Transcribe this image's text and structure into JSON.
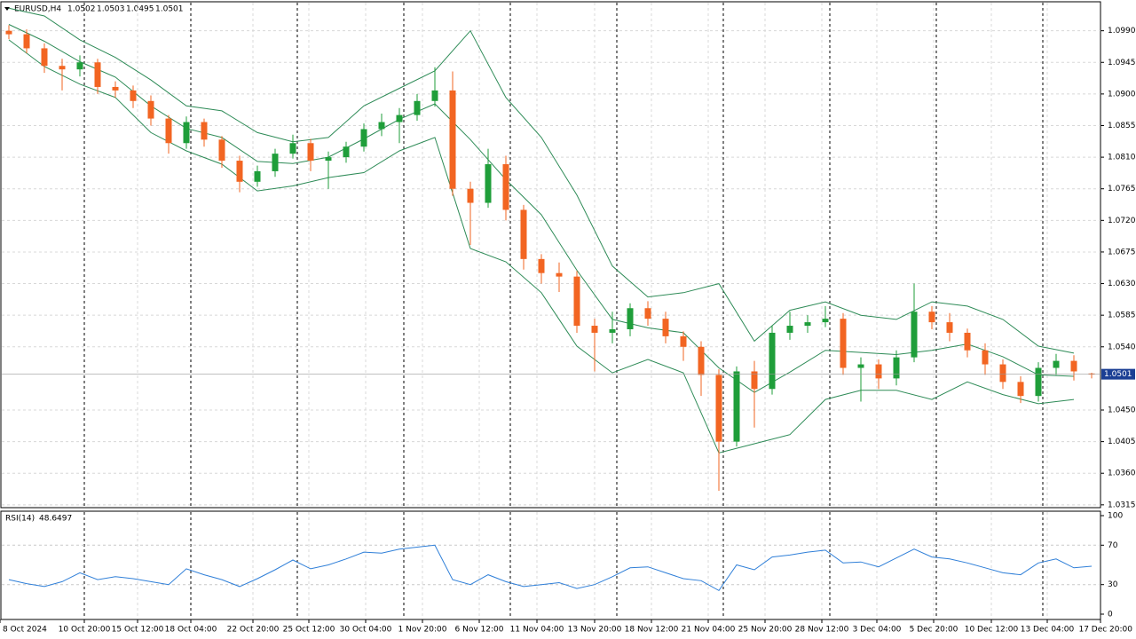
{
  "chart_data": [
    {
      "type": "candlestick",
      "title": "EURUSD,H4",
      "ylim": [
        1.0311,
        1.103
      ],
      "yticks": [
        {
          "value": 1.099,
          "label": "1.0990"
        },
        {
          "value": 1.0945,
          "label": "1.0945"
        },
        {
          "value": 1.09,
          "label": "1.0900"
        },
        {
          "value": 1.0855,
          "label": "1.0855"
        },
        {
          "value": 1.081,
          "label": "1.0810"
        },
        {
          "value": 1.0765,
          "label": "1.0765"
        },
        {
          "value": 1.072,
          "label": "1.0720"
        },
        {
          "value": 1.0675,
          "label": "1.0675"
        },
        {
          "value": 1.063,
          "label": "1.0630"
        },
        {
          "value": 1.0585,
          "label": "1.0585"
        },
        {
          "value": 1.054,
          "label": "1.0540"
        },
        {
          "value": 1.045,
          "label": "1.0450"
        },
        {
          "value": 1.0405,
          "label": "1.0405"
        },
        {
          "value": 1.036,
          "label": "1.0360"
        },
        {
          "value": 1.0315,
          "label": "1.0315"
        }
      ],
      "xlim": [
        0,
        62
      ],
      "xticks": [
        {
          "value": 0,
          "label": "8 Oct 2024"
        },
        {
          "value": 4.75,
          "label": "10 Oct 20:00"
        },
        {
          "value": 7.75,
          "label": "15 Oct 12:00"
        },
        {
          "value": 10.75,
          "label": "18 Oct 04:00"
        },
        {
          "value": 14.25,
          "label": "22 Oct 20:00"
        },
        {
          "value": 17.4,
          "label": "25 Oct 12:00"
        },
        {
          "value": 20.6,
          "label": "30 Oct 04:00"
        },
        {
          "value": 23.8,
          "label": "1 Nov 20:00"
        },
        {
          "value": 27,
          "label": "6 Nov 12:00"
        },
        {
          "value": 30.25,
          "label": "11 Nov 04:00"
        },
        {
          "value": 33.5,
          "label": "13 Nov 20:00"
        },
        {
          "value": 36.7,
          "label": "18 Nov 12:00"
        },
        {
          "value": 39.9,
          "label": "21 Nov 04:00"
        },
        {
          "value": 43.1,
          "label": "25 Nov 20:00"
        },
        {
          "value": 46.3,
          "label": "28 Nov 12:00"
        },
        {
          "value": 49.4,
          "label": "3 Dec 04:00"
        },
        {
          "value": 52.6,
          "label": "5 Dec 20:00"
        },
        {
          "value": 55.85,
          "label": "10 Dec 12:00"
        },
        {
          "value": 59,
          "label": "13 Dec 04:00"
        },
        {
          "value": 62,
          "label": "17 Dec 20:00"
        }
      ],
      "open": [
        1.099,
        1.0985,
        1.0965,
        1.094,
        1.0935,
        1.0945,
        1.091,
        1.0905,
        1.089,
        1.0865,
        1.083,
        1.086,
        1.0835,
        1.0805,
        1.0775,
        1.079,
        1.0815,
        1.083,
        1.0805,
        1.081,
        1.0825,
        1.085,
        1.086,
        1.087,
        1.089,
        1.0905,
        1.0765,
        1.0745,
        1.08,
        1.0735,
        1.0665,
        1.0645,
        1.064,
        1.057,
        1.056,
        1.0565,
        1.0595,
        1.058,
        1.0555,
        1.054,
        1.05,
        1.0405,
        1.0505,
        1.048,
        1.056,
        1.057,
        1.0575,
        1.058,
        1.051,
        1.0515,
        1.0495,
        1.0525,
        1.059,
        1.0575,
        1.056,
        1.0535,
        1.0515,
        1.049,
        1.047,
        1.051,
        1.052,
        1.0502
      ],
      "high": [
        1.0998,
        1.0992,
        1.0972,
        1.095,
        1.0955,
        1.095,
        1.0918,
        1.0912,
        1.0898,
        1.087,
        1.0868,
        1.0865,
        1.084,
        1.0812,
        1.0798,
        1.0822,
        1.0842,
        1.0836,
        1.0818,
        1.0832,
        1.0858,
        1.0872,
        1.088,
        1.09,
        1.0938,
        1.0932,
        1.0775,
        1.0822,
        1.0812,
        1.0742,
        1.0672,
        1.066,
        1.0648,
        1.058,
        1.059,
        1.0602,
        1.0605,
        1.059,
        1.0562,
        1.0548,
        1.0508,
        1.0512,
        1.052,
        1.057,
        1.059,
        1.0585,
        1.0598,
        1.0588,
        1.0525,
        1.0522,
        1.0535,
        1.063,
        1.0598,
        1.0588,
        1.0566,
        1.0545,
        1.0522,
        1.0498,
        1.0518,
        1.053,
        1.0528,
        1.0503
      ],
      "low": [
        1.0978,
        1.0958,
        1.093,
        1.0905,
        1.0925,
        1.09,
        1.0895,
        1.088,
        1.0855,
        1.0815,
        1.0822,
        1.0825,
        1.0795,
        1.076,
        1.0768,
        1.0782,
        1.0808,
        1.079,
        1.0765,
        1.0802,
        1.0818,
        1.084,
        1.083,
        1.0862,
        1.0882,
        1.0755,
        1.0685,
        1.0738,
        1.072,
        1.065,
        1.063,
        1.0618,
        1.056,
        1.0505,
        1.0545,
        1.0555,
        1.057,
        1.0545,
        1.052,
        1.047,
        1.0335,
        1.0398,
        1.0425,
        1.0472,
        1.055,
        1.056,
        1.0568,
        1.05,
        1.0462,
        1.048,
        1.0485,
        1.0518,
        1.0565,
        1.0548,
        1.0525,
        1.05,
        1.048,
        1.046,
        1.0462,
        1.05,
        1.0492,
        1.0495
      ],
      "close": [
        1.0985,
        1.0965,
        1.094,
        1.0935,
        1.0945,
        1.091,
        1.0905,
        1.089,
        1.0865,
        1.083,
        1.086,
        1.0835,
        1.0805,
        1.0775,
        1.079,
        1.0815,
        1.083,
        1.0805,
        1.081,
        1.0825,
        1.085,
        1.086,
        1.087,
        1.089,
        1.0905,
        1.0765,
        1.0745,
        1.08,
        1.0735,
        1.0665,
        1.0645,
        1.064,
        1.057,
        1.056,
        1.0565,
        1.0595,
        1.058,
        1.0555,
        1.054,
        1.05,
        1.0405,
        1.0505,
        1.048,
        1.056,
        1.057,
        1.0575,
        1.058,
        1.051,
        1.0515,
        1.0495,
        1.0525,
        1.059,
        1.0575,
        1.056,
        1.0535,
        1.0515,
        1.049,
        1.047,
        1.051,
        1.052,
        1.0505,
        1.0501
      ],
      "up_color": "#1f9e3a",
      "down_color": "#f26522",
      "last_price_color": "#1b3f94",
      "grid": true,
      "bands": {
        "color": "#2e8b57",
        "x": [
          0,
          2,
          4,
          6,
          8,
          10,
          12,
          14,
          16,
          18,
          20,
          22,
          24,
          26,
          28,
          30,
          32,
          34,
          36,
          38,
          40,
          42,
          44,
          46,
          48,
          50,
          52,
          54,
          56,
          58,
          60
        ],
        "upper": [
          1.1022,
          1.1011,
          1.0977,
          1.0952,
          1.092,
          1.0883,
          1.0876,
          1.0845,
          1.0832,
          1.0838,
          1.0883,
          1.0908,
          1.0933,
          1.099,
          1.0895,
          1.0838,
          1.0756,
          1.0655,
          1.0611,
          1.0617,
          1.063,
          1.0548,
          1.0592,
          1.0604,
          1.0585,
          1.0579,
          1.0604,
          1.0598,
          1.0579,
          1.0541,
          1.0531
        ],
        "middle": [
          1.0999,
          1.0975,
          1.0946,
          1.0924,
          1.0883,
          1.0851,
          1.0838,
          1.0804,
          1.0801,
          1.081,
          1.0836,
          1.0864,
          1.0886,
          1.0835,
          1.0778,
          1.0728,
          1.0649,
          1.0579,
          1.0567,
          1.056,
          1.051,
          1.0475,
          1.0504,
          1.0535,
          1.0532,
          1.0529,
          1.0535,
          1.0544,
          1.0526,
          1.05,
          1.0498
        ],
        "lower": [
          1.0977,
          1.0939,
          1.0914,
          1.0895,
          1.0845,
          1.0819,
          1.08,
          1.0762,
          1.0769,
          1.0781,
          1.0788,
          1.0819,
          1.0838,
          1.068,
          1.0661,
          1.0617,
          1.0541,
          1.0503,
          1.0522,
          1.0503,
          1.0389,
          1.0402,
          1.0415,
          1.0465,
          1.0478,
          1.0478,
          1.0465,
          1.049,
          1.0472,
          1.0459,
          1.0465
        ]
      }
    },
    {
      "type": "line",
      "title": "RSI(14)",
      "ylim": [
        0,
        100
      ],
      "yticks": [
        0,
        30,
        70,
        100
      ],
      "color": "#2f7fd8",
      "values": [
        35,
        31,
        28,
        33,
        42,
        35,
        38,
        36,
        33,
        30,
        46,
        40,
        35,
        28,
        36,
        45,
        55,
        46,
        50,
        56,
        63,
        62,
        66,
        68,
        70,
        35,
        30,
        40,
        33,
        28,
        30,
        32,
        26,
        30,
        38,
        47,
        48,
        42,
        36,
        34,
        24,
        50,
        45,
        58,
        60,
        63,
        65,
        52,
        53,
        48,
        57,
        66,
        58,
        56,
        52,
        47,
        42,
        40,
        52,
        56,
        47,
        48.6497
      ]
    }
  ]
}
